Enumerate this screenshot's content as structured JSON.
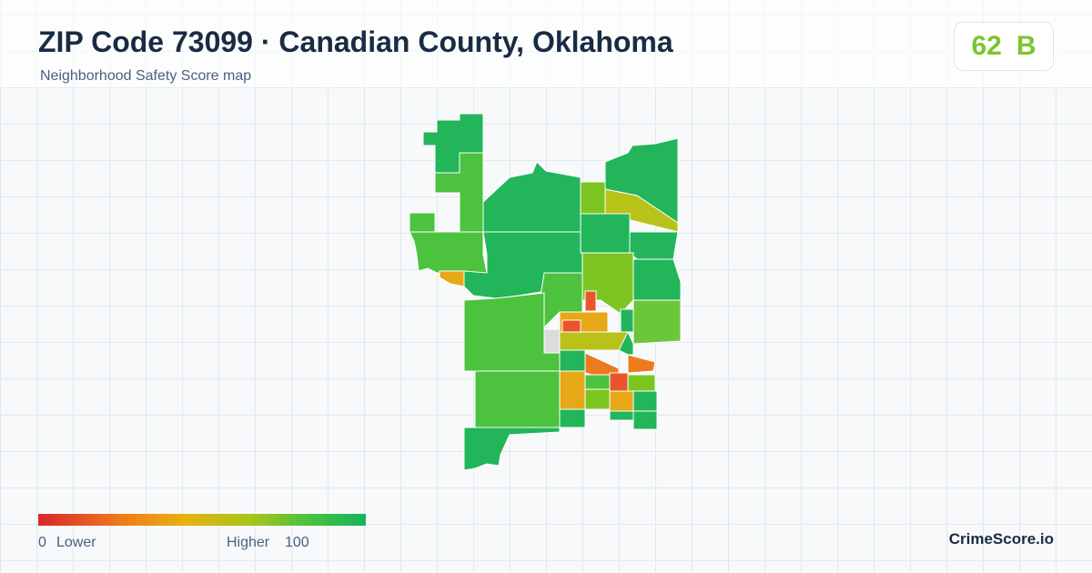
{
  "header": {
    "title": "ZIP Code 73099 · Canadian County, Oklahoma",
    "subtitle": "Neighborhood Safety Score map"
  },
  "score": {
    "value": 62,
    "grade": "B"
  },
  "legend": {
    "min": 0,
    "low_label": "Lower",
    "high_label": "Higher",
    "max": 100
  },
  "brand": "CrimeScore.io"
}
